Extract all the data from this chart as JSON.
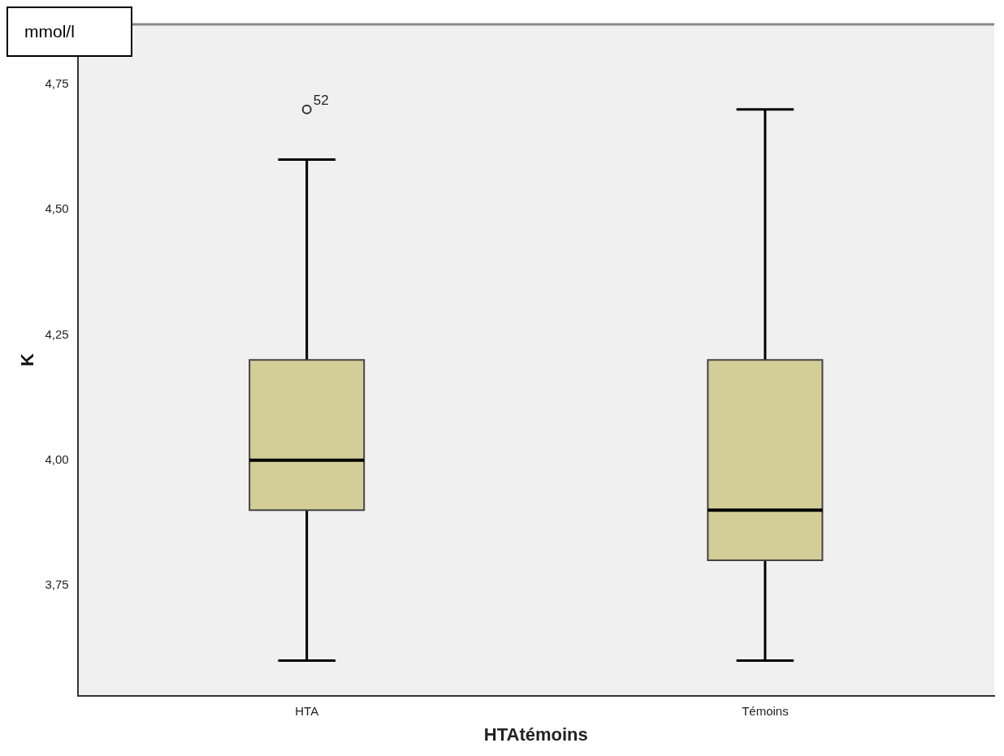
{
  "chart_data": {
    "type": "box",
    "xlabel": "HTAtémoins",
    "ylabel": "K",
    "categories": [
      "HTA",
      "Témoins"
    ],
    "color": "#d3ce98",
    "boxes": [
      {
        "low": 3.6,
        "q1": 3.9,
        "median": 4.0,
        "q3": 4.2,
        "high": 4.6,
        "outliers": [
          4.7
        ]
      },
      {
        "low": 3.6,
        "q1": 3.8,
        "median": 3.9,
        "q3": 4.2,
        "high": 4.7
      }
    ],
    "ylim": [
      3.53,
      4.87
    ],
    "yticks": [
      {
        "value": 3.75,
        "label": "3,75"
      },
      {
        "value": 4.0,
        "label": "4,00"
      },
      {
        "value": 4.25,
        "label": "4,25"
      },
      {
        "value": 4.5,
        "label": "4,50"
      },
      {
        "value": 4.75,
        "label": "4,75"
      }
    ],
    "grid": false,
    "legend": false,
    "annotations": [
      "mmol/l",
      "52"
    ]
  }
}
